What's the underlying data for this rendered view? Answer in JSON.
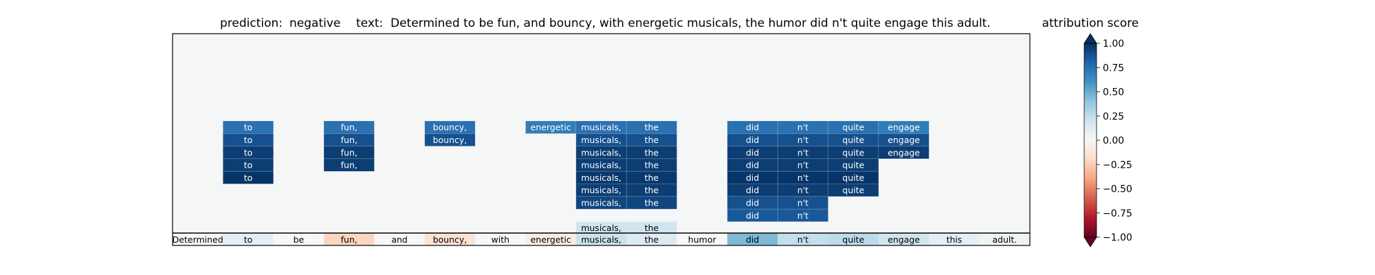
{
  "chart_data": {
    "type": "heatmap",
    "title": {
      "prediction_label": "prediction:",
      "prediction_value": "negative",
      "text_label": "text:",
      "text_value": "Determined to be fun, and bouncy, with energetic musicals, the humor did n't quite engage this adult."
    },
    "tokens": [
      "Determined",
      "to",
      "be",
      "fun,",
      "and",
      "bouncy,",
      "with",
      "energetic",
      "musicals,",
      "the",
      "humor",
      "did",
      "n't",
      "quite",
      "engage",
      "this",
      "adult."
    ],
    "token_scores": [
      0.0,
      0.1,
      0.0,
      -0.22,
      0.0,
      -0.15,
      0.0,
      -0.08,
      0.22,
      0.14,
      0.0,
      0.45,
      0.24,
      0.26,
      0.2,
      0.1,
      0.05
    ],
    "attribution_rows": [
      {
        "token_index": 1,
        "label": "to",
        "values": [
          0.75,
          0.88,
          0.95,
          0.95,
          0.98
        ]
      },
      {
        "token_index": 3,
        "label": "fun,",
        "values": [
          0.75,
          0.88,
          0.95,
          0.95
        ]
      },
      {
        "token_index": 5,
        "label": "bouncy,",
        "values": [
          0.75,
          0.88
        ]
      },
      {
        "token_index": 7,
        "label": "energetic",
        "values": [
          0.7
        ]
      },
      {
        "token_index": 8,
        "label": "musicals,",
        "values": [
          0.75,
          0.88,
          0.95,
          0.95,
          0.97,
          0.95,
          0.92,
          null,
          0.2
        ]
      },
      {
        "token_index": 9,
        "label": "the",
        "values": [
          0.75,
          0.88,
          0.95,
          0.95,
          0.97,
          0.95,
          0.92,
          null,
          0.2
        ]
      },
      {
        "token_index": 11,
        "label": "did",
        "values": [
          0.75,
          0.88,
          0.95,
          0.95,
          0.98,
          0.95,
          0.88,
          0.85
        ]
      },
      {
        "token_index": 12,
        "label": "n't",
        "values": [
          0.75,
          0.88,
          0.95,
          0.95,
          0.98,
          0.95,
          0.88,
          0.85
        ]
      },
      {
        "token_index": 13,
        "label": "quite",
        "values": [
          0.75,
          0.88,
          0.95,
          0.95,
          0.98,
          0.95
        ]
      },
      {
        "token_index": 14,
        "label": "engage",
        "values": [
          0.7,
          0.88,
          0.95
        ]
      }
    ],
    "colorbar": {
      "title": "attribution score",
      "vmin": -1.0,
      "vmax": 1.0,
      "ticks": [
        1.0,
        0.75,
        0.5,
        0.25,
        0.0,
        -0.25,
        -0.5,
        -0.75,
        -1.0
      ],
      "tick_labels": [
        "1.00",
        "0.75",
        "0.50",
        "0.25",
        "0.00",
        "−0.25",
        "−0.50",
        "−0.75",
        "−1.00"
      ],
      "colormap": "RdBu"
    }
  }
}
